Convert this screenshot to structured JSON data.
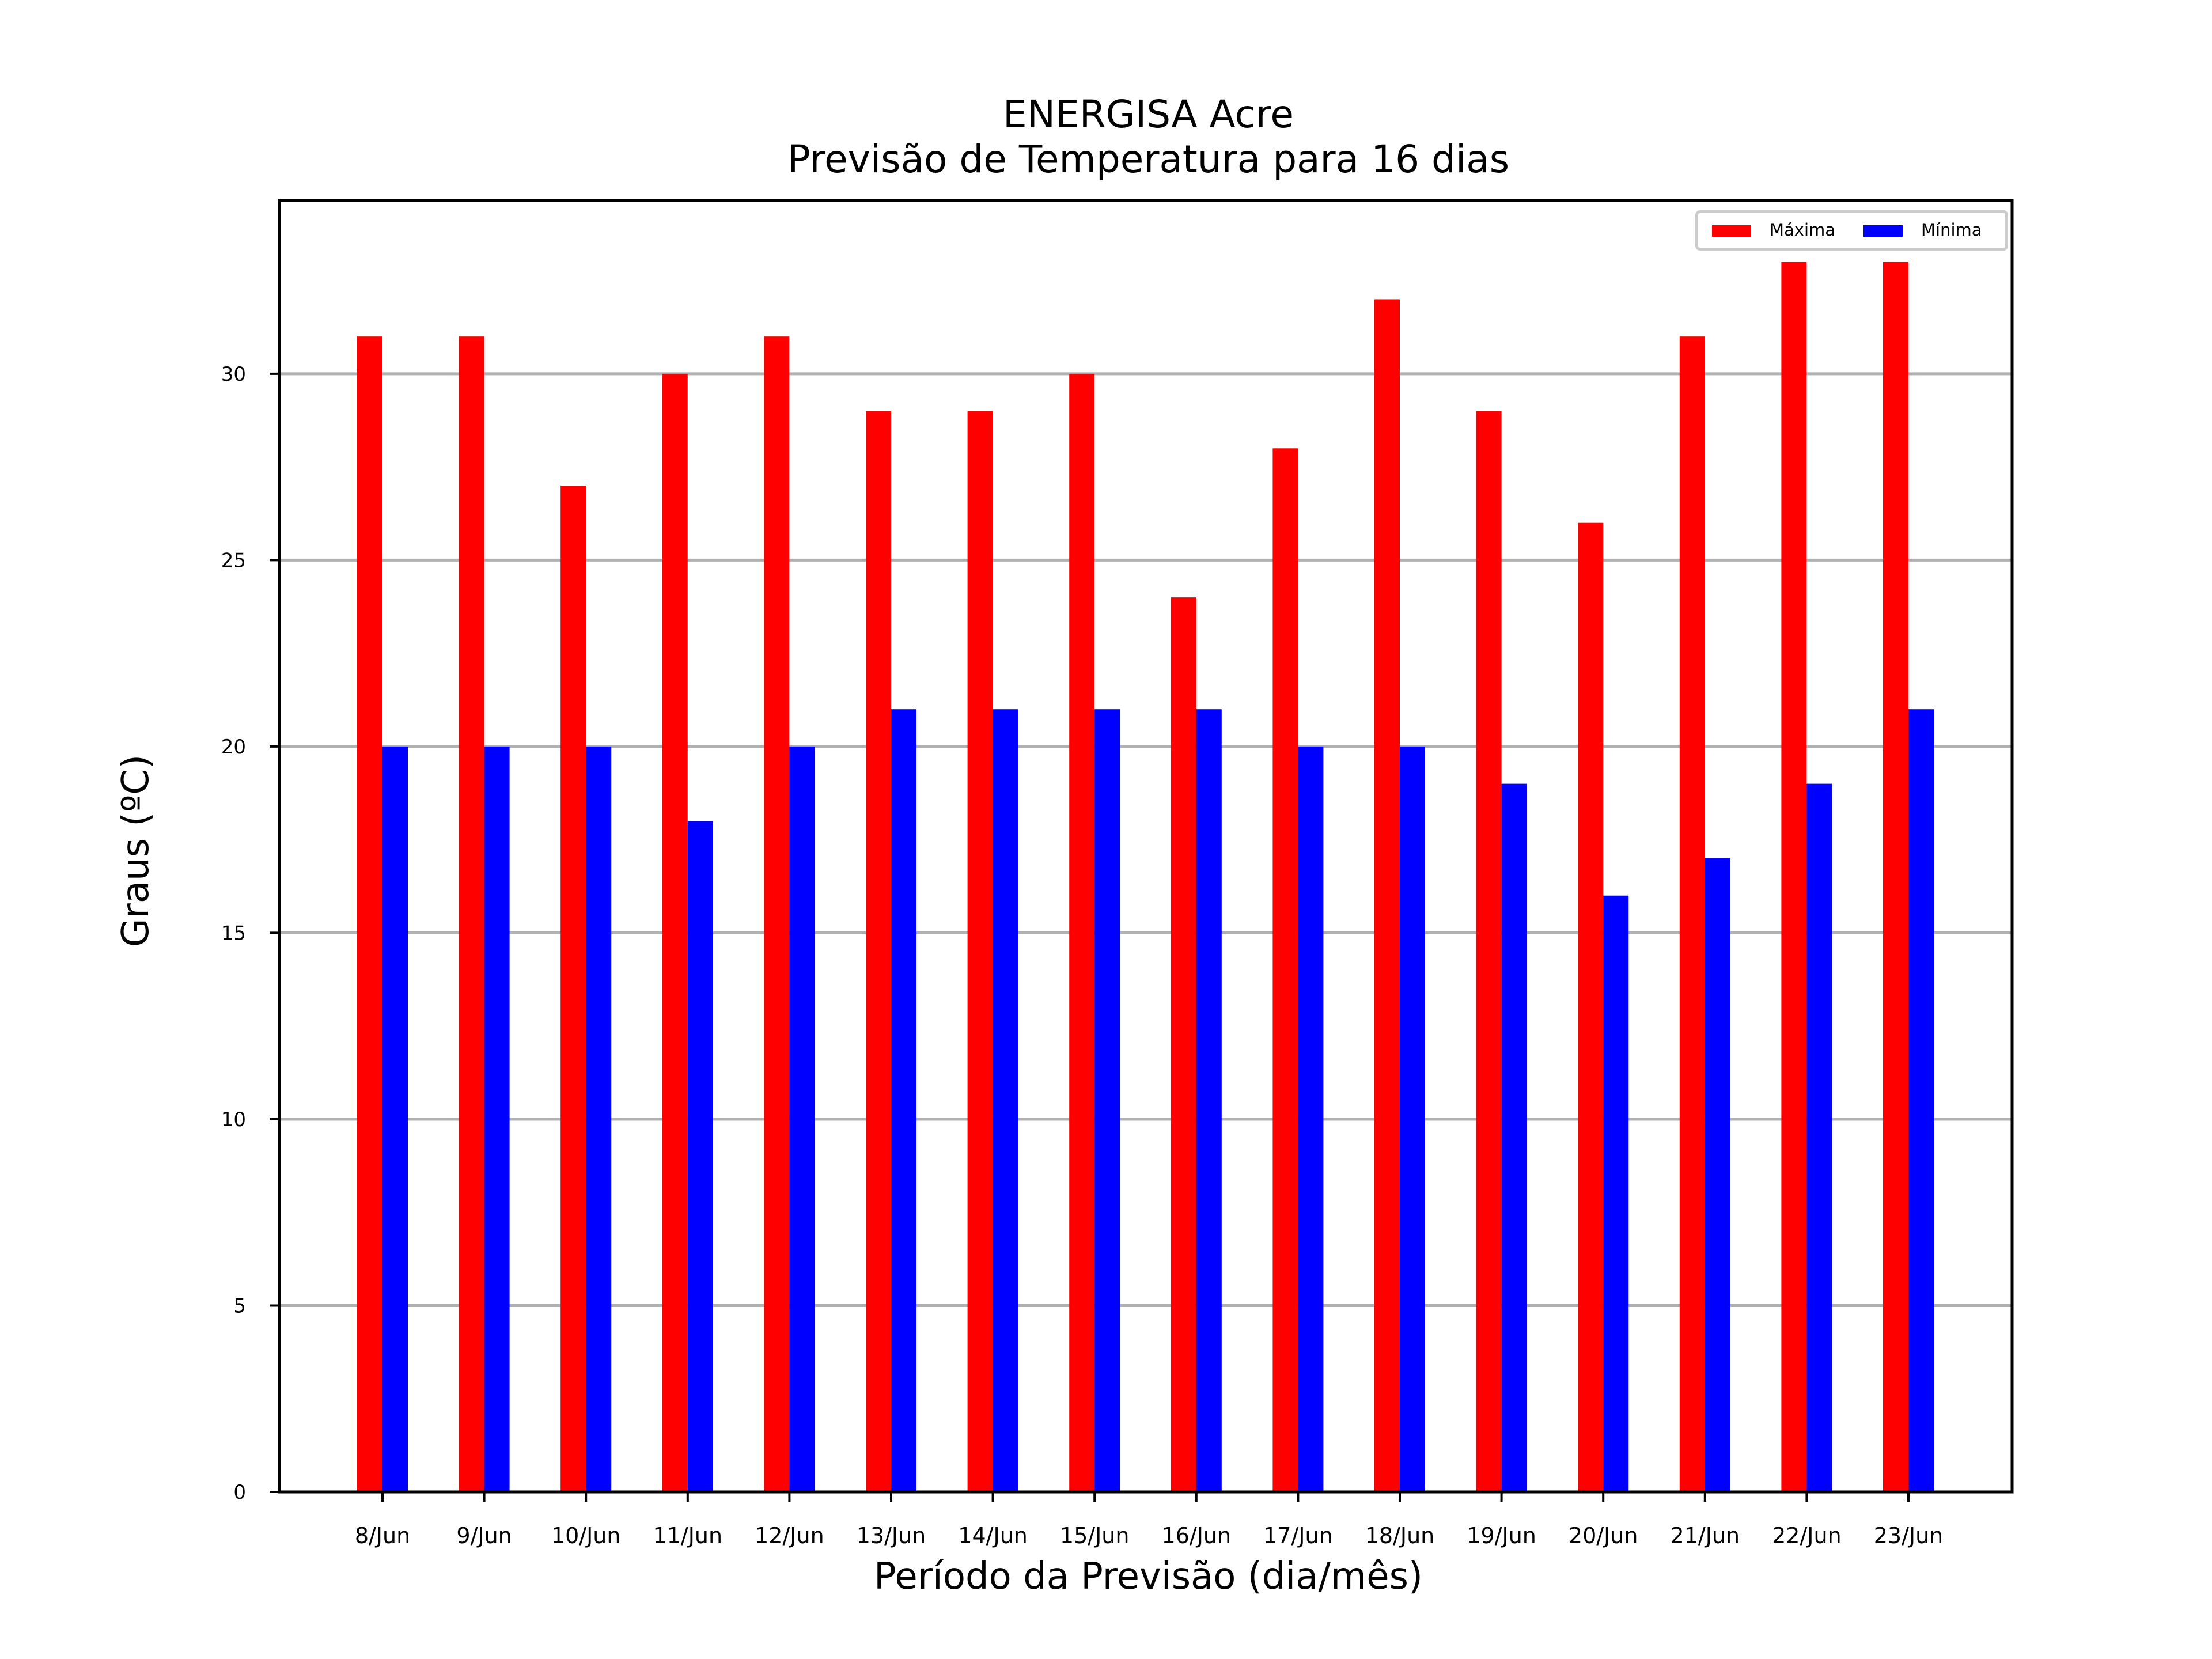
{
  "chart_data": {
    "type": "bar",
    "title": "ENERGISA Acre",
    "subtitle": "Previsão de Temperatura para 16 dias",
    "xlabel": "Período da Previsão (dia/mês)",
    "ylabel": "Graus (ºC)",
    "categories": [
      "8/Jun",
      "9/Jun",
      "10/Jun",
      "11/Jun",
      "12/Jun",
      "13/Jun",
      "14/Jun",
      "15/Jun",
      "16/Jun",
      "17/Jun",
      "18/Jun",
      "19/Jun",
      "20/Jun",
      "21/Jun",
      "22/Jun",
      "23/Jun"
    ],
    "series": [
      {
        "name": "Máxima",
        "color": "#ff0000",
        "values": [
          31,
          31,
          27,
          30,
          31,
          29,
          29,
          30,
          24,
          28,
          32,
          29,
          26,
          31,
          33,
          33
        ]
      },
      {
        "name": "Mínima",
        "color": "#0000ff",
        "values": [
          20,
          20,
          20,
          18,
          20,
          21,
          21,
          21,
          21,
          20,
          20,
          19,
          16,
          17,
          19,
          21
        ]
      }
    ],
    "ylim": [
      0,
      34.65
    ],
    "yticks": [
      0,
      5,
      10,
      15,
      20,
      25,
      30
    ],
    "grid": "horizontal",
    "legend_position": "top-right"
  }
}
